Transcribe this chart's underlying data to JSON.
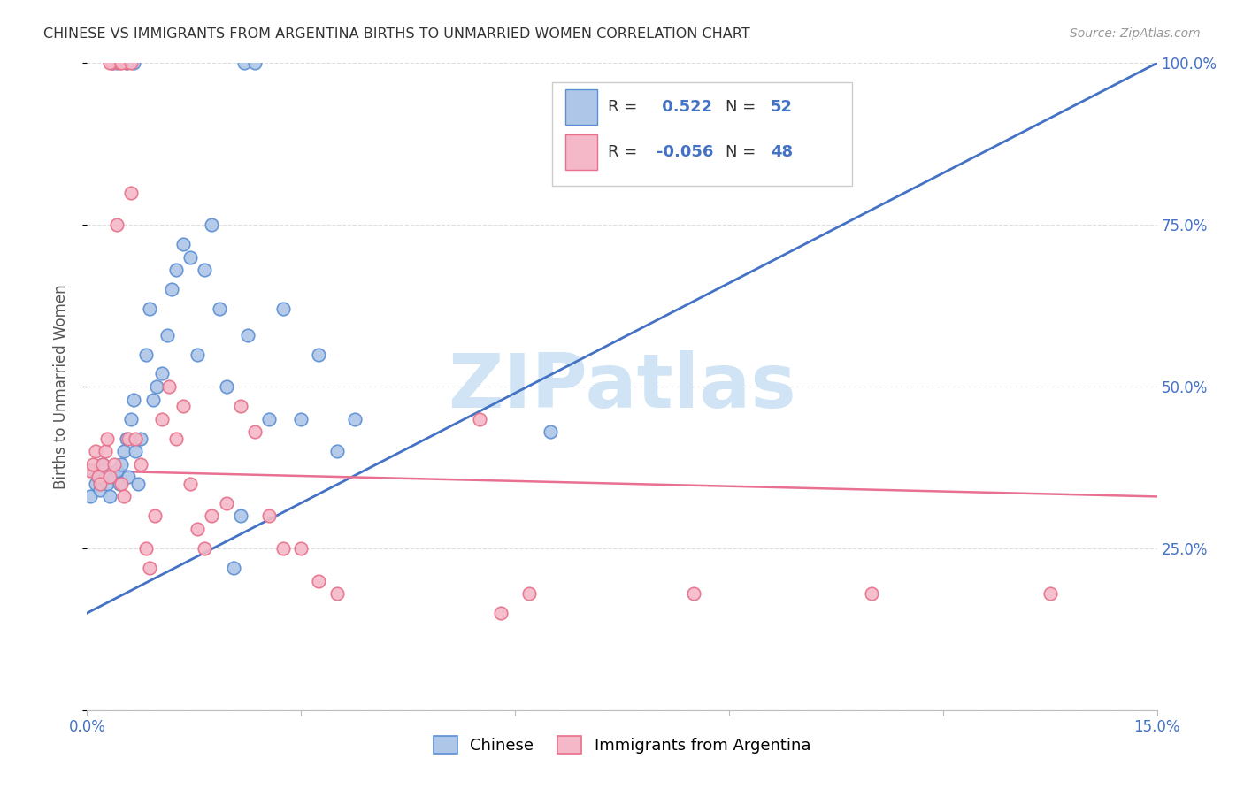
{
  "title": "CHINESE VS IMMIGRANTS FROM ARGENTINA BIRTHS TO UNMARRIED WOMEN CORRELATION CHART",
  "source": "Source: ZipAtlas.com",
  "ylabel": "Births to Unmarried Women",
  "xlim": [
    0.0,
    15.0
  ],
  "ylim": [
    0.0,
    100.0
  ],
  "color_chinese_fill": "#aec6e8",
  "color_chinese_edge": "#5b8fd4",
  "color_argentina_fill": "#f4b8c8",
  "color_argentina_edge": "#e8708a",
  "color_chinese_line": "#4472c4",
  "color_argentina_line": "#e87090",
  "legend_R_chinese": " 0.522",
  "legend_N_chinese": "52",
  "legend_R_argentina": "-0.056",
  "legend_N_argentina": "48",
  "chinese_line_x0": 0.0,
  "chinese_line_y0": 15.0,
  "chinese_line_x1": 15.0,
  "chinese_line_y1": 100.0,
  "argentina_line_x0": 0.0,
  "argentina_line_y0": 37.0,
  "argentina_line_x1": 15.0,
  "argentina_line_y1": 33.0,
  "chinese_x": [
    0.05,
    0.08,
    0.12,
    0.15,
    0.18,
    0.22,
    0.25,
    0.28,
    0.32,
    0.38,
    0.42,
    0.45,
    0.48,
    0.52,
    0.55,
    0.58,
    0.62,
    0.65,
    0.68,
    0.72,
    0.75,
    0.82,
    0.88,
    0.92,
    0.98,
    1.05,
    1.12,
    1.18,
    1.25,
    1.35,
    1.45,
    1.55,
    1.65,
    1.75,
    1.85,
    1.95,
    2.05,
    2.15,
    2.25,
    2.55,
    2.75,
    3.0,
    3.25,
    3.5,
    3.75,
    0.35,
    0.42,
    0.55,
    0.65,
    2.2,
    2.35,
    6.5
  ],
  "chinese_y": [
    33.0,
    37.0,
    35.0,
    36.0,
    34.0,
    38.0,
    36.0,
    35.0,
    33.0,
    36.0,
    37.0,
    35.0,
    38.0,
    40.0,
    42.0,
    36.0,
    45.0,
    48.0,
    40.0,
    35.0,
    42.0,
    55.0,
    62.0,
    48.0,
    50.0,
    52.0,
    58.0,
    65.0,
    68.0,
    72.0,
    70.0,
    55.0,
    68.0,
    75.0,
    62.0,
    50.0,
    22.0,
    30.0,
    58.0,
    45.0,
    62.0,
    45.0,
    55.0,
    40.0,
    45.0,
    100.0,
    100.0,
    100.0,
    100.0,
    100.0,
    100.0,
    43.0
  ],
  "argentina_x": [
    0.05,
    0.08,
    0.12,
    0.15,
    0.18,
    0.22,
    0.25,
    0.28,
    0.32,
    0.38,
    0.42,
    0.48,
    0.52,
    0.58,
    0.62,
    0.68,
    0.75,
    0.82,
    0.88,
    0.95,
    1.05,
    1.15,
    1.25,
    1.35,
    1.45,
    1.55,
    1.65,
    1.75,
    1.95,
    2.15,
    2.35,
    2.55,
    2.75,
    3.0,
    3.25,
    3.5,
    5.5,
    5.8,
    6.2,
    8.5,
    11.0,
    13.5,
    0.35,
    0.45,
    0.55,
    0.32,
    0.48,
    0.62
  ],
  "argentina_y": [
    37.0,
    38.0,
    40.0,
    36.0,
    35.0,
    38.0,
    40.0,
    42.0,
    36.0,
    38.0,
    75.0,
    35.0,
    33.0,
    42.0,
    80.0,
    42.0,
    38.0,
    25.0,
    22.0,
    30.0,
    45.0,
    50.0,
    42.0,
    47.0,
    35.0,
    28.0,
    25.0,
    30.0,
    32.0,
    47.0,
    43.0,
    30.0,
    25.0,
    25.0,
    20.0,
    18.0,
    45.0,
    15.0,
    18.0,
    18.0,
    18.0,
    18.0,
    100.0,
    100.0,
    100.0,
    100.0,
    100.0,
    100.0
  ],
  "watermark_text": "ZIPatlas",
  "watermark_color": "#d0e4f5",
  "bg_color": "white"
}
